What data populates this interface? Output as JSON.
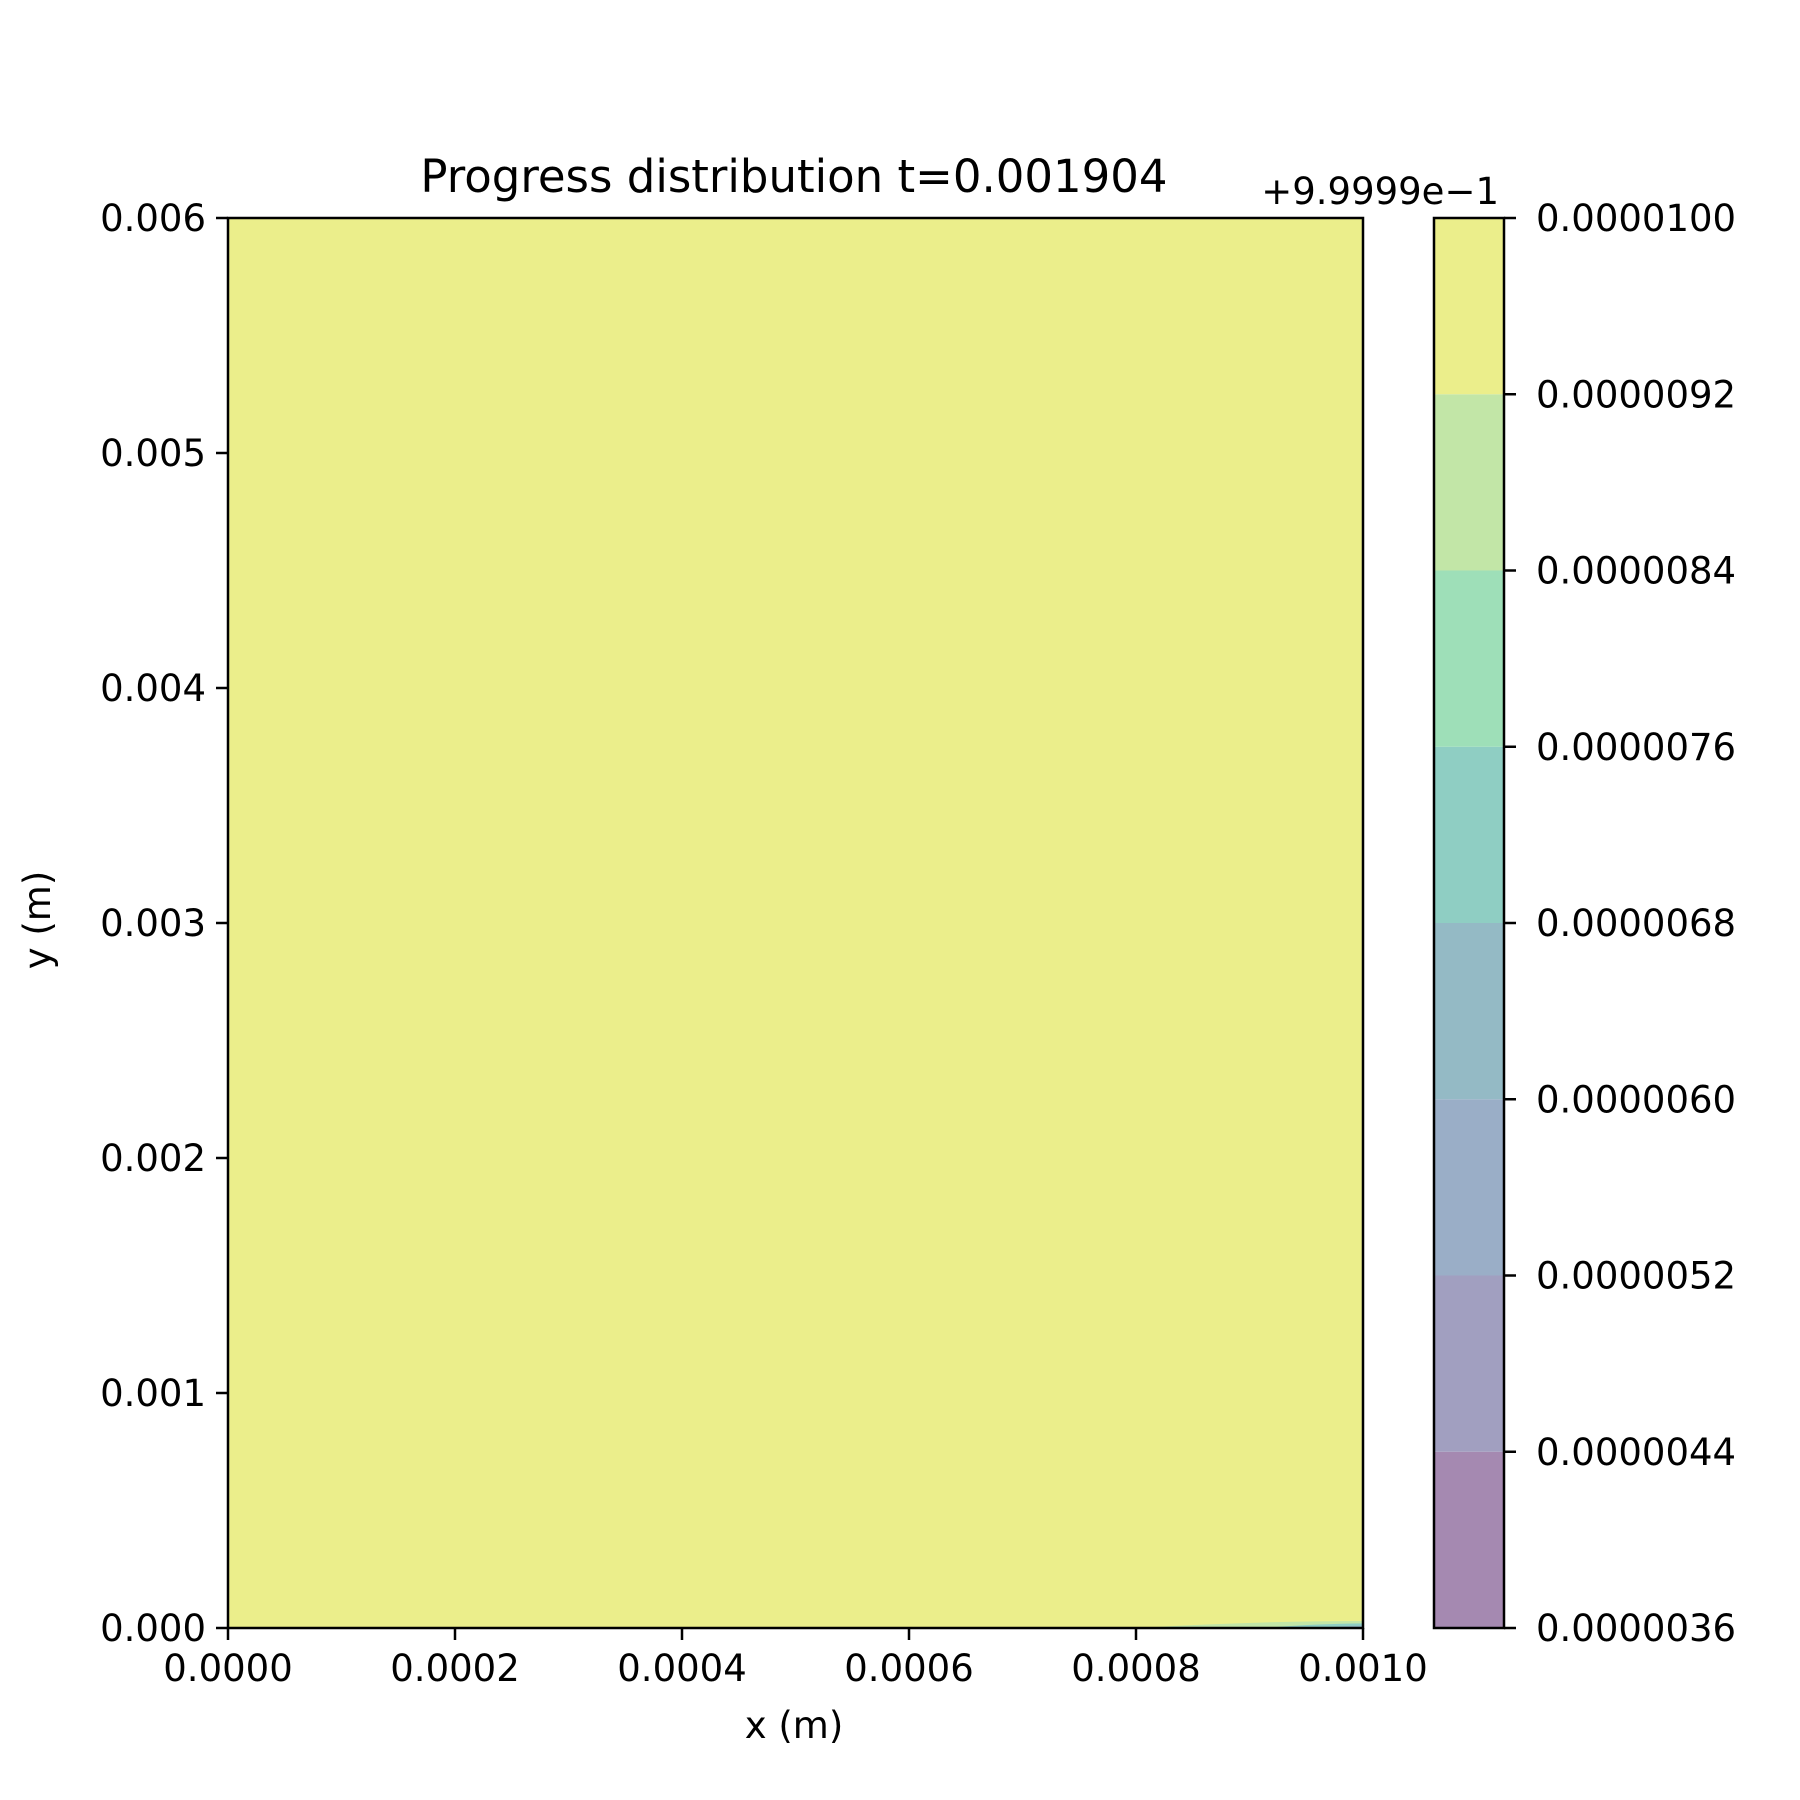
{
  "chart_data": {
    "type": "heatmap",
    "title": "Progress distribution t=0.001904",
    "xlabel": "x (m)",
    "ylabel": "y (m)",
    "xlim": [
      0.0,
      0.001
    ],
    "ylim": [
      0.0,
      0.006
    ],
    "x_ticks": [
      "0.0000",
      "0.0002",
      "0.0004",
      "0.0006",
      "0.0008",
      "0.0010"
    ],
    "y_ticks": [
      "0.000",
      "0.001",
      "0.002",
      "0.003",
      "0.004",
      "0.005",
      "0.006"
    ],
    "colorbar": {
      "offset_label": "+9.9999e−1",
      "levels": [
        3.6e-06,
        4.4e-06,
        5.2e-06,
        6e-06,
        6.8e-06,
        7.6e-06,
        8.4e-06,
        9.2e-06,
        1e-05
      ],
      "tick_labels": [
        "0.0000036",
        "0.0000044",
        "0.0000052",
        "0.0000060",
        "0.0000068",
        "0.0000076",
        "0.0000084",
        "0.0000092",
        "0.0000100"
      ],
      "band_colors": [
        "#a589b1",
        "#a19fc0",
        "#9aaec7",
        "#94bac5",
        "#8fcec3",
        "#9edfb8",
        "#c2e6a7",
        "#ebee8b"
      ]
    },
    "field": {
      "background_value": 9.6e-06,
      "background_color": "#ebee8b",
      "low_region_x_start": 0.0008,
      "low_region_y_max": 3e-05,
      "low_region_colors": [
        "#c2e6a7",
        "#8fcec3",
        "#94bac5"
      ]
    }
  }
}
